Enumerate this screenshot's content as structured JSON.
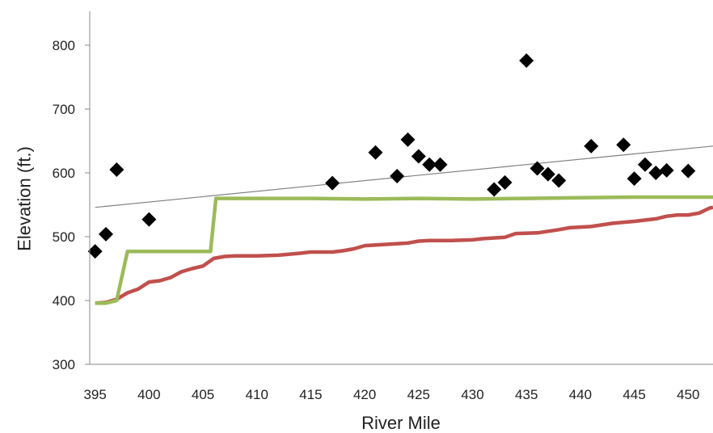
{
  "chart_data": {
    "type": "line",
    "title": "",
    "xlabel": "River Mile",
    "ylabel": "Elevation (ft.)",
    "xlim": [
      394.5,
      452.3
    ],
    "ylim": [
      300,
      800
    ],
    "x_ticks": [
      395,
      400,
      405,
      410,
      415,
      420,
      425,
      430,
      435,
      440,
      445,
      450
    ],
    "y_ticks": [
      300,
      400,
      500,
      600,
      700,
      800
    ],
    "grid": false,
    "legend": "none",
    "series": [
      {
        "type": "scatter",
        "marker": "diamond",
        "color": "#000000",
        "points": [
          [
            395,
            477
          ],
          [
            396,
            504
          ],
          [
            397,
            605
          ],
          [
            400,
            527
          ],
          [
            417,
            584
          ],
          [
            421,
            632
          ],
          [
            423,
            595
          ],
          [
            424,
            652
          ],
          [
            425,
            626
          ],
          [
            426,
            613
          ],
          [
            427,
            613
          ],
          [
            432,
            574
          ],
          [
            433,
            585
          ],
          [
            435,
            776
          ],
          [
            436,
            607
          ],
          [
            437,
            598
          ],
          [
            438,
            588
          ],
          [
            441,
            642
          ],
          [
            444,
            644
          ],
          [
            445,
            591
          ],
          [
            446,
            613
          ],
          [
            447,
            600
          ],
          [
            448,
            604
          ],
          [
            450,
            603
          ]
        ]
      },
      {
        "type": "line",
        "color": "#808080",
        "points": [
          [
            395,
            546
          ],
          [
            452.3,
            642
          ]
        ]
      },
      {
        "type": "line",
        "color": "#9BBB59",
        "points": [
          [
            395,
            396
          ],
          [
            396,
            396
          ],
          [
            397,
            400
          ],
          [
            398,
            477
          ],
          [
            400,
            477
          ],
          [
            405,
            477
          ],
          [
            405.7,
            477
          ],
          [
            406.2,
            560
          ],
          [
            410,
            560
          ],
          [
            415,
            560
          ],
          [
            420,
            559
          ],
          [
            425,
            560
          ],
          [
            430,
            559
          ],
          [
            435,
            560
          ],
          [
            440,
            561
          ],
          [
            445,
            562
          ],
          [
            452.3,
            562
          ]
        ]
      },
      {
        "type": "line",
        "color": "#C0504D",
        "points": [
          [
            395,
            396
          ],
          [
            396,
            397
          ],
          [
            397,
            402
          ],
          [
            398,
            412
          ],
          [
            399,
            418
          ],
          [
            400,
            429
          ],
          [
            401,
            431
          ],
          [
            402,
            436
          ],
          [
            403,
            445
          ],
          [
            404,
            450
          ],
          [
            405,
            454
          ],
          [
            406,
            466
          ],
          [
            407,
            469
          ],
          [
            408,
            470
          ],
          [
            410,
            470
          ],
          [
            412,
            471
          ],
          [
            414,
            474
          ],
          [
            415,
            476
          ],
          [
            417,
            476
          ],
          [
            418,
            478
          ],
          [
            419,
            481
          ],
          [
            420,
            486
          ],
          [
            422,
            488
          ],
          [
            424,
            490
          ],
          [
            425,
            493
          ],
          [
            426,
            494
          ],
          [
            428,
            494
          ],
          [
            430,
            495
          ],
          [
            431,
            497
          ],
          [
            433,
            499
          ],
          [
            434,
            505
          ],
          [
            436,
            506
          ],
          [
            438,
            511
          ],
          [
            439,
            514
          ],
          [
            441,
            516
          ],
          [
            443,
            521
          ],
          [
            445,
            524
          ],
          [
            447,
            528
          ],
          [
            448,
            532
          ],
          [
            449,
            534
          ],
          [
            450,
            534
          ],
          [
            451,
            537
          ],
          [
            452,
            545
          ],
          [
            452.3,
            546
          ]
        ]
      }
    ]
  }
}
